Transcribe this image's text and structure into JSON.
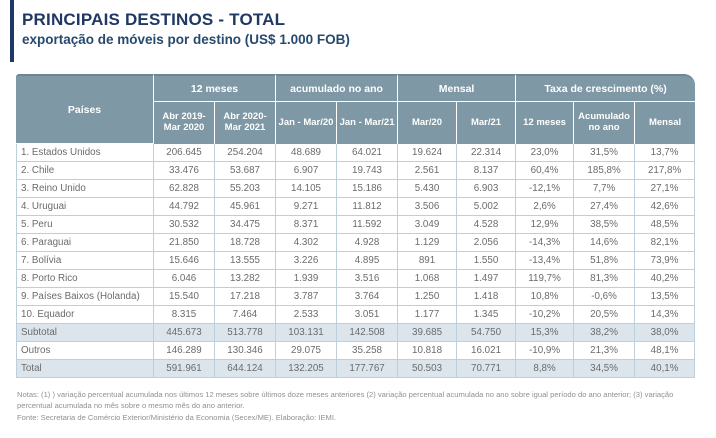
{
  "colors": {
    "accent_navy": "#1f3864",
    "subtitle_navy": "#27496d",
    "header_teal": "#7e98a5",
    "band_blue": "#dbe5eb",
    "grid_blue": "#bccfda",
    "text_gray": "#6b6b6b",
    "notes_gray": "#8f9193"
  },
  "header": {
    "title": "PRINCIPAIS DESTINOS - TOTAL",
    "subtitle": "exportação de móveis por destino (US$ 1.000 FOB)"
  },
  "table": {
    "corner_label": "Países",
    "groups": [
      {
        "label": "12 meses",
        "span": 2
      },
      {
        "label": "acumulado no ano",
        "span": 2
      },
      {
        "label": "Mensal",
        "span": 2
      },
      {
        "label": "Taxa de crescimento (%)",
        "span": 3
      }
    ],
    "sub_headers": [
      "Abr 2019- Mar 2020",
      "Abr 2020- Mar 2021",
      "Jan - Mar/20",
      "Jan - Mar/21",
      "Mar/20",
      "Mar/21",
      "12 meses",
      "Acumulado no ano",
      "Mensal"
    ],
    "rows": [
      {
        "label": "1. Estados Unidos",
        "band": false,
        "values": [
          "206.645",
          "254.204",
          "48.689",
          "64.021",
          "19.624",
          "22.314",
          "23,0%",
          "31,5%",
          "13,7%"
        ]
      },
      {
        "label": "2. Chile",
        "band": false,
        "values": [
          "33.476",
          "53.687",
          "6.907",
          "19.743",
          "2.561",
          "8.137",
          "60,4%",
          "185,8%",
          "217,8%"
        ]
      },
      {
        "label": "3. Reino Unido",
        "band": false,
        "values": [
          "62.828",
          "55.203",
          "14.105",
          "15.186",
          "5.430",
          "6.903",
          "-12,1%",
          "7,7%",
          "27,1%"
        ]
      },
      {
        "label": "4. Uruguai",
        "band": false,
        "values": [
          "44.792",
          "45.961",
          "9.271",
          "11.812",
          "3.506",
          "5.002",
          "2,6%",
          "27,4%",
          "42,6%"
        ]
      },
      {
        "label": "5. Peru",
        "band": false,
        "values": [
          "30.532",
          "34.475",
          "8.371",
          "11.592",
          "3.049",
          "4.528",
          "12,9%",
          "38,5%",
          "48,5%"
        ]
      },
      {
        "label": "6. Paraguai",
        "band": false,
        "values": [
          "21.850",
          "18.728",
          "4.302",
          "4.928",
          "1.129",
          "2.056",
          "-14,3%",
          "14,6%",
          "82,1%"
        ]
      },
      {
        "label": "7. Bolívia",
        "band": false,
        "values": [
          "15.646",
          "13.555",
          "3.226",
          "4.895",
          "891",
          "1.550",
          "-13,4%",
          "51,8%",
          "73,9%"
        ]
      },
      {
        "label": "8. Porto Rico",
        "band": false,
        "values": [
          "6.046",
          "13.282",
          "1.939",
          "3.516",
          "1.068",
          "1.497",
          "119,7%",
          "81,3%",
          "40,2%"
        ]
      },
      {
        "label": "9. Países Baixos (Holanda)",
        "band": false,
        "values": [
          "15.540",
          "17.218",
          "3.787",
          "3.764",
          "1.250",
          "1.418",
          "10,8%",
          "-0,6%",
          "13,5%"
        ]
      },
      {
        "label": "10. Equador",
        "band": false,
        "values": [
          "8.315",
          "7.464",
          "2.533",
          "3.051",
          "1.177",
          "1.345",
          "-10,2%",
          "20,5%",
          "14,3%"
        ]
      },
      {
        "label": "Subtotal",
        "band": true,
        "values": [
          "445.673",
          "513.778",
          "103.131",
          "142.508",
          "39.685",
          "54.750",
          "15,3%",
          "38,2%",
          "38,0%"
        ]
      },
      {
        "label": "Outros",
        "band": false,
        "values": [
          "146.289",
          "130.346",
          "29.075",
          "35.258",
          "10.818",
          "16.021",
          "-10,9%",
          "21,3%",
          "48,1%"
        ]
      },
      {
        "label": "Total",
        "band": true,
        "values": [
          "591.961",
          "644.124",
          "132.205",
          "177.767",
          "50.503",
          "70.771",
          "8,8%",
          "34,5%",
          "40,1%"
        ]
      }
    ]
  },
  "footer": {
    "notes": "Notas: (1) ) variação percentual acumulada nos últimos 12 meses sobre últimos doze meses anteriores (2) variação percentual acumulada no ano sobre igual período do ano anterior; (3) variação percentual acumulada no mês sobre o mesmo mês do ano anterior.",
    "source": "Fonte: Secretaria de Comércio Exterior/Ministério da Economia (Secex/ME). Elaboração: IEMI."
  }
}
